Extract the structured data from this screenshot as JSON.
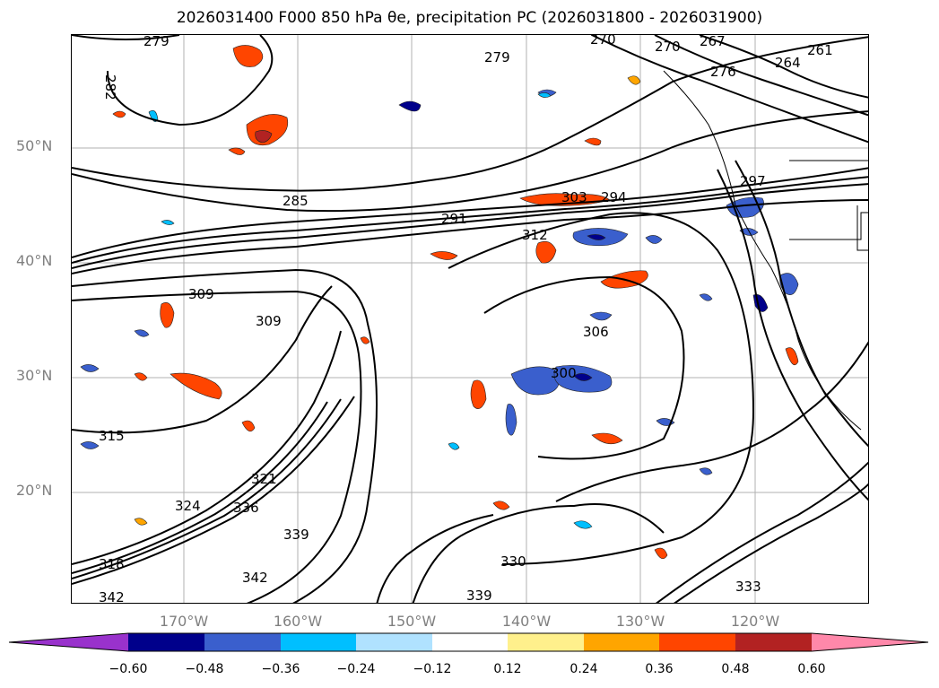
{
  "title": "2026031400 F000 850 hPa θe, precipitation PC (2026031800 - 2026031900)",
  "latitude_labels": [
    "50°N",
    "40°N",
    "30°N",
    "20°N"
  ],
  "longitude_labels": [
    "170°W",
    "160°W",
    "150°W",
    "140°W",
    "130°W",
    "120°W"
  ],
  "contour_labels": [
    "279",
    "279",
    "282",
    "285",
    "291",
    "294",
    "297",
    "300",
    "303",
    "306",
    "309",
    "309",
    "312",
    "315",
    "318",
    "321",
    "324",
    "330",
    "333",
    "336",
    "339",
    "339",
    "342",
    "342",
    "261",
    "264",
    "267",
    "270",
    "270",
    "276"
  ],
  "colorbar": {
    "ticks": [
      "−0.60",
      "−0.48",
      "−0.36",
      "−0.24",
      "−0.12",
      "0.12",
      "0.24",
      "0.36",
      "0.48",
      "0.60"
    ],
    "colors": [
      "#9932cc",
      "#00008b",
      "#3a5fcd",
      "#00bfff",
      "#b0e2ff",
      "#ffffff",
      "#fff08c",
      "#ffa500",
      "#ff4500",
      "#b22222",
      "#ff88aa"
    ]
  }
}
